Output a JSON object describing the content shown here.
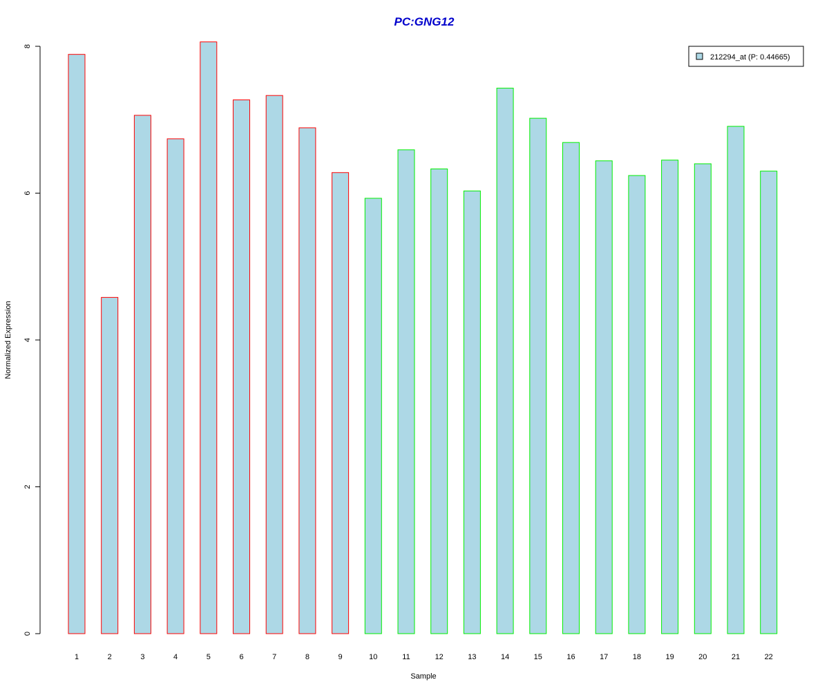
{
  "chart_data": {
    "type": "bar",
    "title": "PC:GNG12",
    "xlabel": "Sample",
    "ylabel": "Normalized Expression",
    "categories": [
      "1",
      "2",
      "3",
      "4",
      "5",
      "6",
      "7",
      "8",
      "9",
      "10",
      "11",
      "12",
      "13",
      "14",
      "15",
      "16",
      "17",
      "18",
      "19",
      "20",
      "21",
      "22"
    ],
    "series": [
      {
        "name": "212294_at (P: 0.44665)",
        "values": [
          7.89,
          4.58,
          7.06,
          6.74,
          8.06,
          7.27,
          7.33,
          6.89,
          6.28,
          5.93,
          6.59,
          6.33,
          6.03,
          7.43,
          7.02,
          6.69,
          6.44,
          6.24,
          6.45,
          6.4,
          6.91,
          6.3
        ]
      }
    ],
    "group_outline": [
      "#ff0000",
      "#ff0000",
      "#ff0000",
      "#ff0000",
      "#ff0000",
      "#ff0000",
      "#ff0000",
      "#ff0000",
      "#ff0000",
      "#00ee00",
      "#00ee00",
      "#00ee00",
      "#00ee00",
      "#00ee00",
      "#00ee00",
      "#00ee00",
      "#00ee00",
      "#00ee00",
      "#00ee00",
      "#00ee00",
      "#00ee00",
      "#00ee00"
    ],
    "bar_fill": "#add8e6",
    "title_color": "#0000cc",
    "yticks": [
      0,
      2,
      4,
      6,
      8
    ],
    "ylim": [
      0,
      8
    ],
    "grid": false,
    "legend_position": "top-right"
  }
}
